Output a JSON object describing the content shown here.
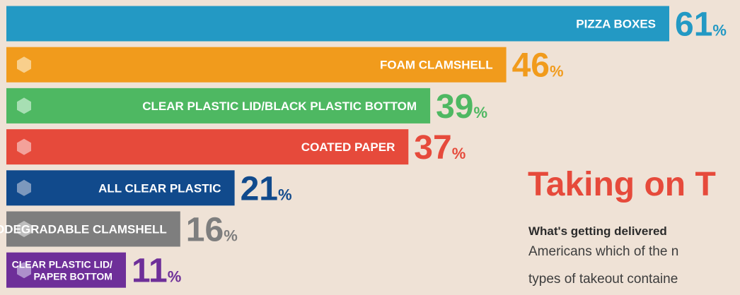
{
  "chart_data": {
    "type": "bar",
    "orientation": "horizontal",
    "categories": [
      "PIZZA BOXES",
      "FOAM CLAMSHELL",
      "CLEAR PLASTIC LID/BLACK PLASTIC BOTTOM",
      "COATED PAPER",
      "ALL CLEAR PLASTIC",
      "BIODEGRADABLE CLAMSHELL",
      "CLEAR PLASTIC LID/ PAPER BOTTOM"
    ],
    "values": [
      61,
      46,
      39,
      37,
      21,
      16,
      11
    ],
    "unit": "%",
    "colors": [
      "#2399c4",
      "#f19b1c",
      "#4eb862",
      "#e64a3b",
      "#114a8c",
      "#7e7e7e",
      "#6e2f99"
    ],
    "hexagon_colors": [
      "#2399c4",
      "#f8cf8c",
      "#a7dfb3",
      "#f3a19a",
      "#7c98bd",
      "#bdbdbd",
      "#ad8fcb"
    ]
  },
  "text": {
    "title": "Taking on T",
    "intro_bold": "What's getting delivered",
    "intro_line_1": "Americans which of the n",
    "intro_line_2": "types of takeout containe"
  },
  "colors": {
    "background": "#efe2d6",
    "title": "#e64a3b"
  }
}
